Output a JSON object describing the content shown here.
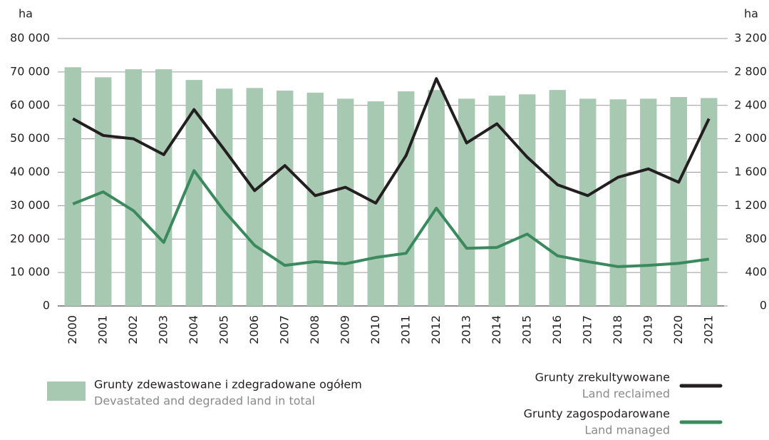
{
  "chart_data": {
    "type": "bar",
    "y_label": "ha",
    "y2_label": "ha",
    "categories": [
      "2000",
      "2001",
      "2002",
      "2003",
      "2004",
      "2005",
      "2006",
      "2007",
      "2008",
      "2009",
      "2010",
      "2011",
      "2012",
      "2013",
      "2014",
      "2015",
      "2016",
      "2017",
      "2018",
      "2019",
      "2020",
      "2021"
    ],
    "series": [
      {
        "name": "Grunty zdewastowane i zdegradowane ogółem",
        "name_en": "Devastated and degraded land in total",
        "type": "bar",
        "axis": "y",
        "color": "#a7c8b1",
        "values": [
          71400,
          68400,
          70800,
          70800,
          67600,
          65000,
          65200,
          64400,
          63800,
          62000,
          61200,
          64200,
          64600,
          62000,
          62900,
          63300,
          64600,
          62000,
          61800,
          62000,
          62500,
          62200
        ]
      },
      {
        "name": "Grunty zrekultywowane",
        "name_en": "Land reclaimed",
        "type": "line",
        "axis": "y2",
        "color": "#231f20",
        "values": [
          2240,
          2040,
          2000,
          1810,
          2350,
          1870,
          1380,
          1680,
          1320,
          1420,
          1230,
          1800,
          2720,
          1950,
          2180,
          1780,
          1450,
          1320,
          1540,
          1640,
          1480,
          2240
        ]
      },
      {
        "name": "Grunty zagospodarowane",
        "name_en": "Land managed",
        "type": "line",
        "axis": "y2",
        "color": "#3a8a5e",
        "values": [
          1220,
          1365,
          1140,
          760,
          1620,
          1135,
          725,
          485,
          530,
          505,
          580,
          630,
          1170,
          690,
          700,
          860,
          600,
          530,
          470,
          485,
          510,
          560
        ]
      }
    ],
    "ylim": [
      0,
      80000
    ],
    "yticks": [
      0,
      {
        "value": 10000,
        "label": "10 000"
      },
      {
        "value": 20000,
        "label": "20 000"
      },
      {
        "value": 30000,
        "label": "30 000"
      },
      {
        "value": 40000,
        "label": "40 000"
      },
      {
        "value": 50000,
        "label": "50 000"
      },
      {
        "value": 60000,
        "label": "60 000"
      },
      {
        "value": 70000,
        "label": "70 000"
      },
      {
        "value": 80000,
        "label": "80 000"
      }
    ],
    "y2lim": [
      0,
      3200
    ],
    "y2ticks": [
      0,
      400,
      800,
      {
        "value": 1200,
        "label": "1 200"
      },
      {
        "value": 1600,
        "label": "1 600"
      },
      {
        "value": 2000,
        "label": "2 000"
      },
      {
        "value": 2400,
        "label": "2 400"
      },
      {
        "value": 2800,
        "label": "2 800"
      },
      {
        "value": 3200,
        "label": "3 200"
      }
    ],
    "grid": true
  }
}
